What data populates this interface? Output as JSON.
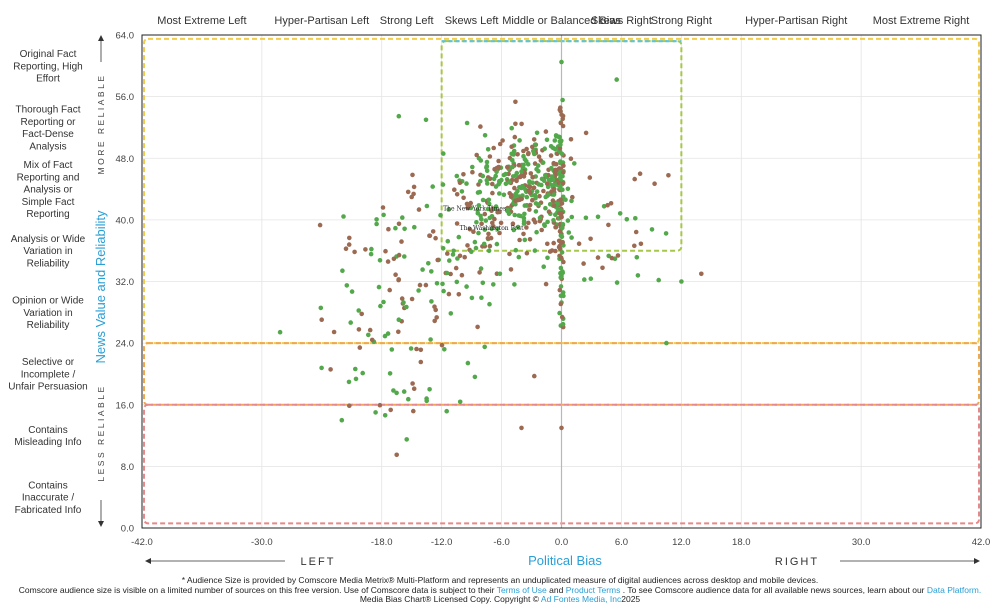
{
  "chart_data": {
    "type": "scatter",
    "x_axis": {
      "title": "Political Bias",
      "range": [
        -42,
        42
      ],
      "ticks": [
        -42.0,
        -30.0,
        -18.0,
        -12.0,
        -6.0,
        0.0,
        6.0,
        12.0,
        18.0,
        30.0,
        42.0
      ],
      "tick_labels": [
        "-42.0",
        "-30.0",
        "-18.0",
        "-12.0",
        "-6.0",
        "0.0",
        "6.0",
        "12.0",
        "18.0",
        "30.0",
        "42.0"
      ],
      "left_label": "LEFT",
      "right_label": "RIGHT"
    },
    "y_axis": {
      "title": "News Value and Reliability",
      "range": [
        0,
        64
      ],
      "ticks": [
        0,
        8,
        16,
        24,
        32,
        40,
        48,
        56,
        64
      ],
      "tick_labels": [
        "0.0",
        "8.0",
        "16.0",
        "24.0",
        "32.0",
        "40.0",
        "48.0",
        "56.0",
        "64.0"
      ],
      "more_label": "MORE RELIABLE",
      "less_label": "LESS RELIABLE"
    },
    "bias_categories": [
      {
        "label": "Most Extreme Left",
        "center": -36
      },
      {
        "label": "Hyper-Partisan Left",
        "center": -24
      },
      {
        "label": "Strong Left",
        "center": -15
      },
      {
        "label": "Skews Left",
        "center": -9
      },
      {
        "label": "Middle or Balanced Bias",
        "center": 0
      },
      {
        "label": "Skews Right",
        "center": 6
      },
      {
        "label": "Strong Right",
        "center": 12
      },
      {
        "label": "Hyper-Partisan Right",
        "center": 24
      },
      {
        "label": "Most Extreme Right",
        "center": 36
      }
    ],
    "reliability_categories": [
      {
        "label": "Original Fact Reporting, High Effort",
        "center": 60
      },
      {
        "label": "Thorough Fact Reporting or Fact-Dense Analysis",
        "center": 52
      },
      {
        "label": "Mix of Fact Reporting and Analysis or Simple Fact Reporting",
        "center": 44
      },
      {
        "label": "Analysis or Wide Variation in Reliability",
        "center": 36
      },
      {
        "label": "Opinion or Wide Variation in Reliability",
        "center": 28
      },
      {
        "label": "Selective or Incomplete / Unfair Persuasion",
        "center": 20
      },
      {
        "label": "Contains Misleading Info",
        "center": 12
      },
      {
        "label": "Contains Inaccurate / Fabricated Info",
        "center": 4
      }
    ],
    "zones": [
      {
        "name": "green box",
        "x": [
          -12,
          12
        ],
        "y": [
          36,
          63.2
        ],
        "color": "#a6c84a"
      },
      {
        "name": "teal top edge",
        "x": [
          -12,
          12
        ],
        "y": [
          63.2,
          63.2
        ],
        "color": "#5ec4d6"
      },
      {
        "name": "yellow outer",
        "x": [
          -41.8,
          41.8
        ],
        "y": [
          24,
          63.5
        ],
        "color": "#f2cc4a"
      },
      {
        "name": "orange band",
        "x": [
          -41.8,
          41.8
        ],
        "y": [
          16,
          24
        ],
        "color": "#f0a84c"
      },
      {
        "name": "red lower",
        "x": [
          -41.8,
          41.8
        ],
        "y": [
          0.6,
          16
        ],
        "color": "#e8888a"
      }
    ],
    "series_colors": {
      "green": "#52a84a",
      "brown": "#9c6a52"
    },
    "source_labels": [
      {
        "text": "The New York Times",
        "x": -8.7,
        "y": 41.2
      },
      {
        "text": "The Washington Post",
        "x": -7.0,
        "y": 38.7
      }
    ],
    "points_seed": 24071
  },
  "footer": {
    "line1": "* Audience Size is provided by Comscore Media Metrix® Multi-Platform and represents an unduplicated measure of digital audiences across desktop and mobile devices.",
    "line2_a": "Comscore audience size is visible on a limited number of sources on this free version. Use of Comscore data is subject to their",
    "line2_terms": "Terms of Use",
    "line2_and": "and",
    "line2_product": "Product Terms",
    "line2_b": ". To see Comscore audience data for all available news sources, learn about our",
    "line2_platform": "Data Platform.",
    "line3_a": "Media Bias Chart® Licensed Copy. Copyright ©",
    "line3_company": "Ad Fontes Media, Inc",
    "line3_year": "2025"
  }
}
